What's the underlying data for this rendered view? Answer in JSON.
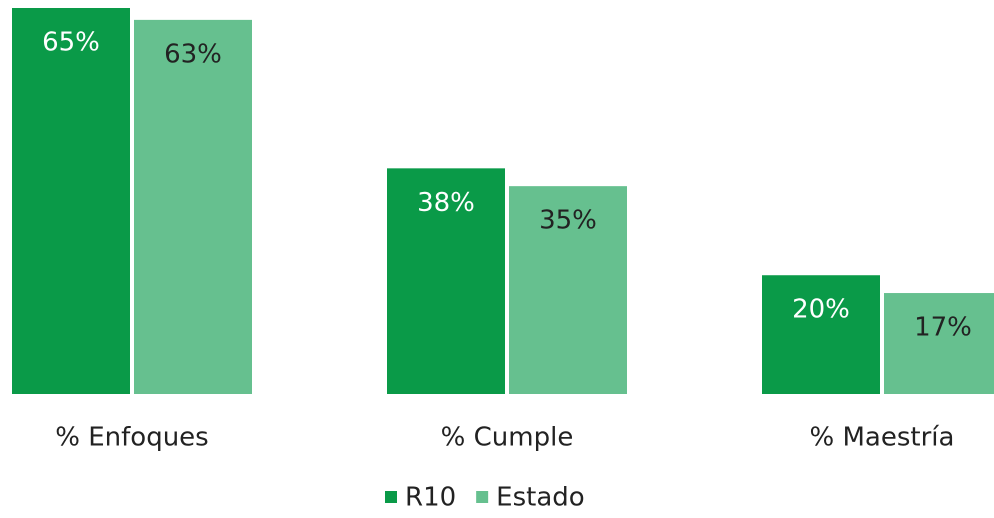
{
  "chart_data": {
    "type": "bar",
    "categories": [
      "% Enfoques",
      "% Cumple",
      "% Maestría"
    ],
    "series": [
      {
        "name": "R10",
        "color": "#0a9a48",
        "values": [
          65,
          38,
          20
        ],
        "value_labels": [
          "65%",
          "38%",
          "20%"
        ]
      },
      {
        "name": "Estado",
        "color": "#66c08f",
        "values": [
          63,
          35,
          17
        ],
        "value_labels": [
          "63%",
          "35%",
          "17%"
        ]
      }
    ],
    "legend": "bottom"
  }
}
